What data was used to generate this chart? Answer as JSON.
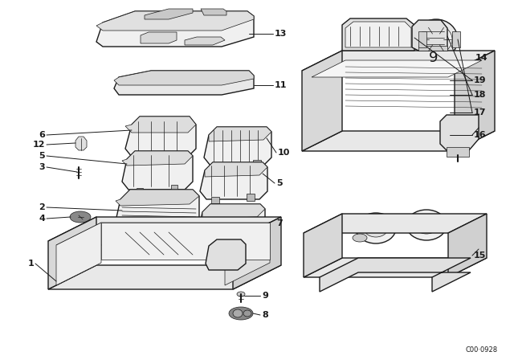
{
  "bg_color": "#ffffff",
  "line_color": "#1a1a1a",
  "lw_main": 1.0,
  "lw_detail": 0.5,
  "lw_label": 0.7,
  "figsize": [
    6.4,
    4.48
  ],
  "dpi": 100,
  "watermark": "C00·0928"
}
